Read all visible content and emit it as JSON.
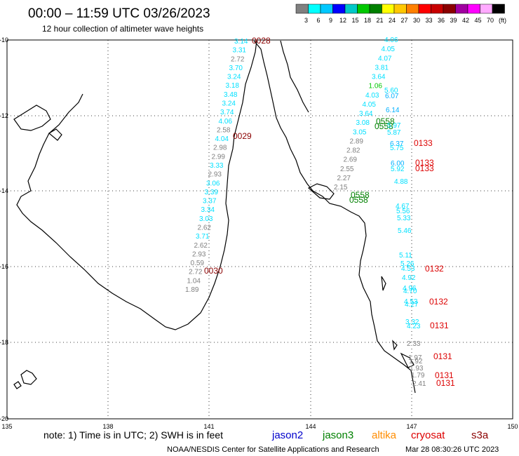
{
  "header": {
    "title": "00:00 – 11:59 UTC 03/26/2023",
    "subtitle": "12 hour collection of altimeter wave heights"
  },
  "colorbar": {
    "colors": [
      "#808080",
      "#00ffff",
      "#00c8ff",
      "#0000ff",
      "#00c8c8",
      "#00c800",
      "#008000",
      "#ffff00",
      "#ffc800",
      "#ff8000",
      "#ff0000",
      "#c80000",
      "#8b0000",
      "#a000a0",
      "#ff00ff",
      "#ffaaff",
      "#000000"
    ],
    "labels": [
      "3",
      "6",
      "9",
      "12",
      "15",
      "18",
      "21",
      "24",
      "27",
      "30",
      "33",
      "36",
      "39",
      "42",
      "45",
      "70",
      "(ft)"
    ]
  },
  "axes": {
    "lat_labels": [
      "-10",
      "-12",
      "-14",
      "-16",
      "-18",
      "-20"
    ],
    "lon_labels": [
      "135",
      "138",
      "141",
      "144",
      "147",
      "150"
    ]
  },
  "tracks": {
    "west": {
      "values": [
        "3.14",
        "3.31",
        "2.72",
        "3.70",
        "3.24",
        "3.18",
        "3.48",
        "3.24",
        "3.74",
        "4.06",
        "2.58",
        "4.04",
        "2.98",
        "2.99",
        "3.33",
        "2.93",
        "3.06",
        "3.39",
        "3.37",
        "3.34",
        "3.03",
        "2.62",
        "3.71",
        "2.62",
        "2.93",
        "0.59",
        "2.72",
        "1.04",
        "1.89"
      ],
      "times": [
        "0028",
        "0029",
        "0030"
      ]
    },
    "diagonal": {
      "values": [
        "4.06",
        "4.05",
        "4.07",
        "3.81",
        "3.64",
        "1.06",
        "4.03",
        "4.05",
        "3.64",
        "3.08",
        "3.05",
        "2.89",
        "2.82",
        "2.69",
        "2.55",
        "2.27",
        "2.15"
      ],
      "times": [
        "0558",
        "0558",
        "0558",
        "0558"
      ]
    },
    "east": {
      "values": [
        "5.60",
        "6.07",
        "6.14",
        "5.97",
        "5.87",
        "6.37",
        "5.75",
        "6.00",
        "5.92",
        "4.88",
        "4.67",
        "5.56",
        "5.33",
        "5.46",
        "5.11",
        "5.26",
        "4.53",
        "4.92",
        "4.96",
        "4.70",
        "4.53",
        "4.27",
        "3.32",
        "4.23",
        "2.33",
        "1.97",
        "1.92",
        "1.93",
        "1.79",
        "2.41"
      ],
      "times": [
        "0133",
        "0133",
        "0133",
        "0132",
        "0132",
        "0131",
        "0131",
        "0131",
        "0131"
      ]
    }
  },
  "footer": {
    "note": "note: 1) Time is in UTC; 2) SWH is in feet",
    "legend": [
      {
        "name": "jason2",
        "color": "#0000cc"
      },
      {
        "name": "jason3",
        "color": "#008000"
      },
      {
        "name": "altika",
        "color": "#ff8c00"
      },
      {
        "name": "cryosat",
        "color": "#dd0000"
      },
      {
        "name": "s3a",
        "color": "#8b0000"
      }
    ],
    "credit": "NOAA/NESDIS Center for Satellite Applications and Research",
    "timestamp": "Mar 28 08:30:26 UTC 2023"
  }
}
